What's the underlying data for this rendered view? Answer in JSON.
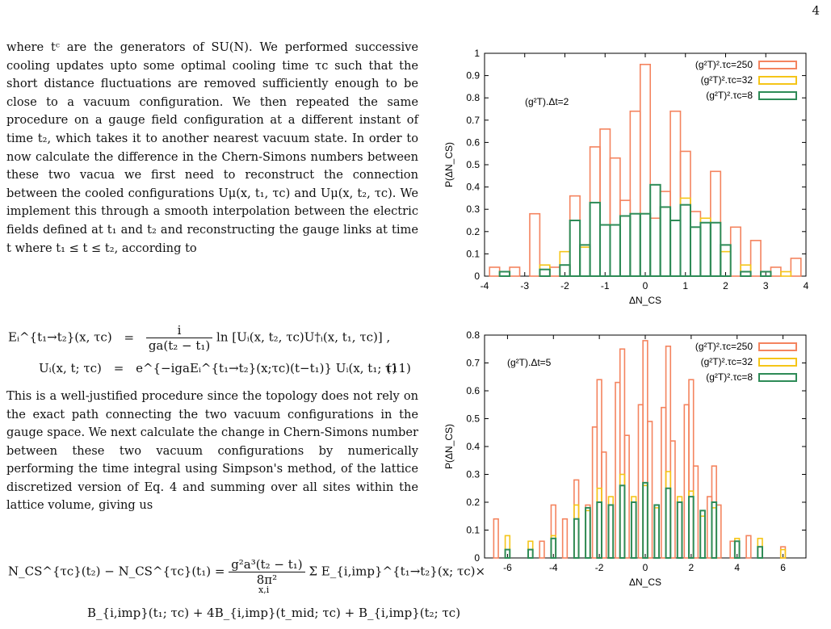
{
  "page_number": "4",
  "paragraph1": "where tᶜ are the generators of SU(N). We performed successive cooling updates upto some optimal cooling time τc such that the short distance fluctuations are removed sufficiently enough to be close to a vacuum configuration. We then repeated the same procedure on a gauge field configuration at a different instant of time t₂, which takes it to another nearest vacuum state. In order to now calculate the difference in the Chern-Simons numbers between these two vacua we first need to reconstruct the connection between the cooled configurations Uμ(x, t₁, τc) and Uμ(x, t₂, τc). We implement this through a smooth interpolation between the electric fields defined at t₁ and t₂ and reconstructing the gauge links at time t where t₁ ≤ t ≤ t₂, according to",
  "eq1_lhs": "Eᵢ^{t₁→t₂}(x, τc)",
  "eq1_rhs": "ln [Uᵢ(x, t₂, τc)U†ᵢ(x, t₁, τc)] ,",
  "eq1_num": "i",
  "eq1_den": "ga(t₂ − t₁)",
  "eq2_lhs": "Uᵢ(x, t; τc)",
  "eq2_rhs": "e^{−igaEᵢ^{t₁→t₂}(x;τc)(t−t₁)} Uᵢ(x, t₁; τ) .",
  "eq_number": "(11)",
  "paragraph2": "This is a well-justified procedure since the topology does not rely on the exact path connecting the two vacuum configurations in the gauge space. We next calculate the change in Chern-Simons number between these two vacuum configurations by numerically performing the time integral using Simpson's method, of the lattice discretized version of Eq. 4 and summing over all sites within the lattice volume, giving us",
  "eq3_lhs": "N_CS^{τc}(t₂) − N_CS^{τc}(t₁) =",
  "eq3_num": "g²a³(t₂ − t₁)",
  "eq3_den": "8π²",
  "eq3_rhs": "Σ E_{i,imp}^{t₁→t₂}(x; τc)×",
  "eq3_sum_sub": "x,i",
  "eq4": "B_{i,imp}(t₁; τc) + 4B_{i,imp}(t_mid; τc) + B_{i,imp}(t₂; τc)",
  "chart_data": [
    {
      "type": "bar",
      "title": "",
      "xlabel": "ΔN_CS",
      "ylabel": "P(ΔN_CS)",
      "xlim": [
        -4,
        4
      ],
      "ylim": [
        0,
        1
      ],
      "xticks": [
        "-4",
        "-3",
        "-2",
        "-1",
        "0",
        "1",
        "2",
        "3",
        "4"
      ],
      "yticks": [
        "0",
        "0.1",
        "0.2",
        "0.3",
        "0.4",
        "0.5",
        "0.6",
        "0.7",
        "0.8",
        "0.9",
        "1"
      ],
      "annotation": "(g²T).Δt=2",
      "legend_position": "top-right",
      "series": [
        {
          "name": "(g²T)².τc=250",
          "color": "#f4845f",
          "x": [
            -3.75,
            -3.25,
            -2.75,
            -2.25,
            -1.75,
            -1.25,
            -1.0,
            -0.75,
            -0.5,
            -0.25,
            0.0,
            0.25,
            0.5,
            0.75,
            1.0,
            1.25,
            1.75,
            2.25,
            2.75,
            3.25,
            3.75
          ],
          "values": [
            0.04,
            0.04,
            0.28,
            0.04,
            0.36,
            0.58,
            0.66,
            0.53,
            0.34,
            0.74,
            0.95,
            0.26,
            0.38,
            0.74,
            0.56,
            0.29,
            0.47,
            0.22,
            0.16,
            0.04,
            0.08
          ]
        },
        {
          "name": "(g²T)².τc=32",
          "color": "#f5c518",
          "x": [
            -3.5,
            -2.5,
            -2.0,
            -1.5,
            -1.0,
            -0.5,
            0.0,
            0.5,
            1.0,
            1.5,
            2.0,
            2.5,
            3.0,
            3.5
          ],
          "values": [
            0.02,
            0.05,
            0.11,
            0.13,
            0.23,
            0.27,
            0.28,
            0.31,
            0.35,
            0.26,
            0.11,
            0.05,
            0.02,
            0.02
          ]
        },
        {
          "name": "(g²T)².τc=8",
          "color": "#2e8b57",
          "x": [
            -3.5,
            -2.5,
            -2.0,
            -1.75,
            -1.5,
            -1.25,
            -1.0,
            -0.75,
            -0.5,
            -0.25,
            0.0,
            0.25,
            0.5,
            0.75,
            1.0,
            1.25,
            1.5,
            1.75,
            2.0,
            2.5,
            3.0
          ],
          "values": [
            0.02,
            0.03,
            0.05,
            0.25,
            0.14,
            0.33,
            0.23,
            0.23,
            0.27,
            0.28,
            0.28,
            0.41,
            0.31,
            0.25,
            0.32,
            0.22,
            0.24,
            0.24,
            0.14,
            0.02,
            0.02
          ]
        }
      ]
    },
    {
      "type": "bar",
      "title": "",
      "xlabel": "ΔN_CS",
      "ylabel": "P(ΔN_CS)",
      "xlim": [
        -7,
        7
      ],
      "ylim": [
        0,
        0.8
      ],
      "xticks": [
        "-6",
        "-4",
        "-2",
        "0",
        "2",
        "4",
        "6"
      ],
      "yticks": [
        "0",
        "0.1",
        "0.2",
        "0.3",
        "0.4",
        "0.5",
        "0.6",
        "0.7",
        "0.8"
      ],
      "annotation": "(g²T).Δt=5",
      "legend_position": "top-right",
      "series": [
        {
          "name": "(g²T)².τc=250",
          "color": "#f4845f",
          "x": [
            -6.5,
            -4.5,
            -4.0,
            -3.5,
            -3.0,
            -2.5,
            -2.2,
            -2.0,
            -1.8,
            -1.2,
            -1.0,
            -0.8,
            -0.2,
            0.0,
            0.2,
            0.8,
            1.0,
            1.2,
            1.8,
            2.0,
            2.2,
            2.8,
            3.0,
            3.2,
            3.8,
            4.5,
            5.0,
            6.0
          ],
          "values": [
            0.14,
            0.06,
            0.19,
            0.14,
            0.28,
            0.19,
            0.47,
            0.64,
            0.38,
            0.63,
            0.75,
            0.44,
            0.55,
            0.78,
            0.49,
            0.54,
            0.76,
            0.42,
            0.55,
            0.64,
            0.33,
            0.22,
            0.33,
            0.19,
            0.06,
            0.08,
            0.04,
            0.04
          ]
        },
        {
          "name": "(g²T)².τc=32",
          "color": "#f5c518",
          "x": [
            -6.0,
            -5.0,
            -4.0,
            -3.0,
            -2.5,
            -2.0,
            -1.5,
            -1.0,
            -0.5,
            0.0,
            0.5,
            1.0,
            1.5,
            2.0,
            2.5,
            3.0,
            4.0,
            5.0,
            6.0
          ],
          "values": [
            0.08,
            0.06,
            0.08,
            0.19,
            0.17,
            0.25,
            0.22,
            0.3,
            0.22,
            0.26,
            0.18,
            0.31,
            0.22,
            0.24,
            0.15,
            0.18,
            0.07,
            0.07,
            0.03
          ]
        },
        {
          "name": "(g²T)².τc=8",
          "color": "#2e8b57",
          "x": [
            -6.0,
            -5.0,
            -4.0,
            -3.0,
            -2.5,
            -2.0,
            -1.5,
            -1.0,
            -0.5,
            0.0,
            0.5,
            1.0,
            1.5,
            2.0,
            2.5,
            3.0,
            4.0,
            5.0
          ],
          "values": [
            0.03,
            0.03,
            0.07,
            0.14,
            0.18,
            0.2,
            0.19,
            0.26,
            0.2,
            0.27,
            0.19,
            0.25,
            0.2,
            0.22,
            0.17,
            0.2,
            0.06,
            0.04
          ]
        }
      ]
    }
  ]
}
